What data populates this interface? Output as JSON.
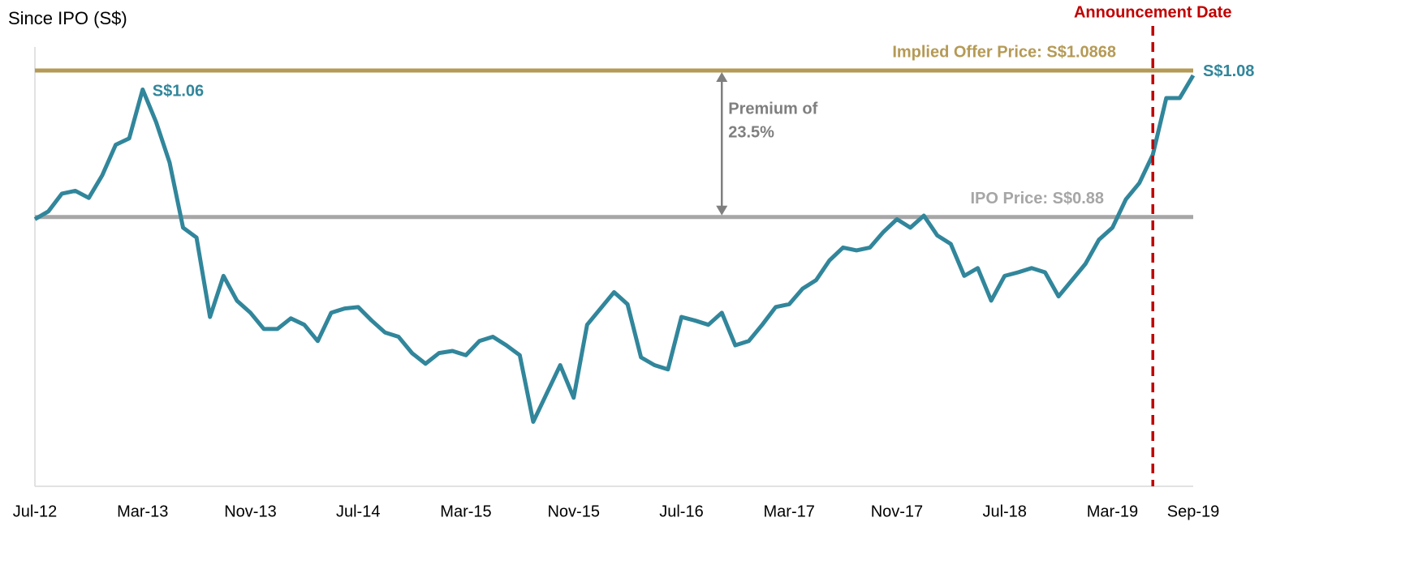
{
  "chart_data": {
    "type": "line",
    "title": "Since IPO (S$)",
    "x": [
      "2012-07",
      "2012-08",
      "2012-09",
      "2012-10",
      "2012-11",
      "2012-12",
      "2013-01",
      "2013-02",
      "2013-03",
      "2013-04",
      "2013-05",
      "2013-06",
      "2013-07",
      "2013-08",
      "2013-09",
      "2013-10",
      "2013-11",
      "2013-12",
      "2014-01",
      "2014-02",
      "2014-03",
      "2014-04",
      "2014-05",
      "2014-06",
      "2014-07",
      "2014-08",
      "2014-09",
      "2014-10",
      "2014-11",
      "2014-12",
      "2015-01",
      "2015-02",
      "2015-03",
      "2015-04",
      "2015-05",
      "2015-06",
      "2015-07",
      "2015-08",
      "2015-09",
      "2015-10",
      "2015-11",
      "2015-12",
      "2016-01",
      "2016-02",
      "2016-03",
      "2016-04",
      "2016-05",
      "2016-06",
      "2016-07",
      "2016-08",
      "2016-09",
      "2016-10",
      "2016-11",
      "2016-12",
      "2017-01",
      "2017-02",
      "2017-03",
      "2017-04",
      "2017-05",
      "2017-06",
      "2017-07",
      "2017-08",
      "2017-09",
      "2017-10",
      "2017-11",
      "2017-12",
      "2018-01",
      "2018-02",
      "2018-03",
      "2018-04",
      "2018-05",
      "2018-06",
      "2018-07",
      "2018-08",
      "2018-09",
      "2018-10",
      "2018-11",
      "2018-12",
      "2019-01",
      "2019-02",
      "2019-03",
      "2019-04",
      "2019-05",
      "2019-06",
      "2019-07",
      "2019-08",
      "2019-09"
    ],
    "values": [
      0.877,
      0.888,
      0.913,
      0.917,
      0.907,
      0.939,
      0.982,
      0.991,
      1.06,
      1.014,
      0.957,
      0.865,
      0.851,
      0.739,
      0.797,
      0.762,
      0.745,
      0.722,
      0.722,
      0.737,
      0.728,
      0.705,
      0.745,
      0.751,
      0.753,
      0.734,
      0.717,
      0.711,
      0.688,
      0.673,
      0.688,
      0.691,
      0.685,
      0.705,
      0.711,
      0.699,
      0.685,
      0.591,
      0.631,
      0.671,
      0.625,
      0.728,
      0.751,
      0.774,
      0.757,
      0.682,
      0.671,
      0.665,
      0.739,
      0.734,
      0.728,
      0.745,
      0.699,
      0.705,
      0.728,
      0.753,
      0.757,
      0.779,
      0.791,
      0.819,
      0.837,
      0.833,
      0.837,
      0.859,
      0.877,
      0.865,
      0.882,
      0.854,
      0.842,
      0.797,
      0.808,
      0.762,
      0.797,
      0.802,
      0.808,
      0.802,
      0.768,
      0.791,
      0.814,
      0.848,
      0.865,
      0.905,
      0.928,
      0.968,
      1.048,
      1.048,
      1.08
    ],
    "color": "#31869b",
    "xlim": [
      "2012-07",
      "2019-09"
    ],
    "xticks": [
      {
        "value": "2012-07",
        "label": "Jul-12"
      },
      {
        "value": "2013-03",
        "label": "Mar-13"
      },
      {
        "value": "2013-11",
        "label": "Nov-13"
      },
      {
        "value": "2014-07",
        "label": "Jul-14"
      },
      {
        "value": "2015-03",
        "label": "Mar-15"
      },
      {
        "value": "2015-11",
        "label": "Nov-15"
      },
      {
        "value": "2016-07",
        "label": "Jul-16"
      },
      {
        "value": "2017-03",
        "label": "Mar-17"
      },
      {
        "value": "2017-11",
        "label": "Nov-17"
      },
      {
        "value": "2018-07",
        "label": "Jul-18"
      },
      {
        "value": "2019-03",
        "label": "Mar-19"
      },
      {
        "value": "2019-09",
        "label": "Sep-19"
      }
    ],
    "ylim": [
      0.5,
      1.12
    ],
    "hlines": [
      {
        "label": "Implied Offer Price: S$1.0868",
        "value": 1.0868,
        "color": "#b59a55"
      },
      {
        "label": "IPO Price: S$0.88",
        "value": 0.88,
        "color": "#a6a6a6"
      }
    ],
    "premium": {
      "lines": [
        "Premium of",
        "23.5%"
      ],
      "x": "2016-10",
      "color": "#7f7f7f"
    },
    "point_labels": [
      {
        "text": "S$1.06",
        "index": 8
      },
      {
        "text": "S$1.08",
        "index": 86
      }
    ],
    "vline": {
      "label": "Announcement Date",
      "x": "2019-06",
      "color": "#c00000"
    }
  }
}
